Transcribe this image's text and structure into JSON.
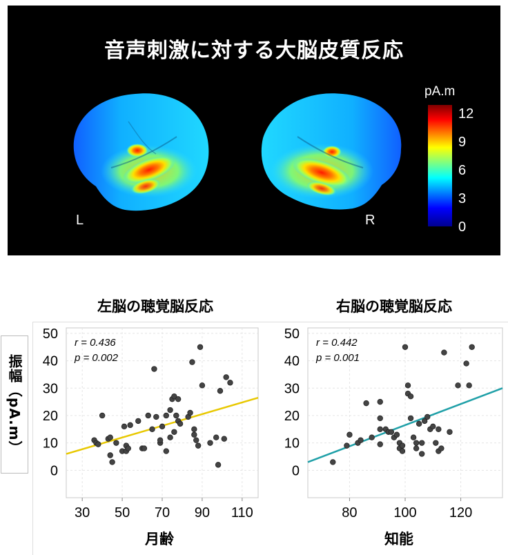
{
  "figure": {
    "title": "音声刺激に対する大脳皮質反応",
    "hemisphere_labels": {
      "left": "L",
      "right": "R"
    },
    "colorbar": {
      "unit": "pA.m",
      "ticks": [
        "12",
        "9",
        "6",
        "3",
        "0"
      ],
      "range": [
        0,
        12
      ],
      "colors": [
        "#00008f",
        "#0000ff",
        "#00ffff",
        "#ffff00",
        "#ff0000",
        "#800000"
      ]
    }
  },
  "y_axis_title": "振幅（pA.m）",
  "chart_data": [
    {
      "type": "scatter",
      "title": "左脳の聴覚脳反応",
      "xlabel": "月齢",
      "ylabel": "振幅（pA.m）",
      "xlim": [
        22,
        118
      ],
      "ylim": [
        -10,
        52
      ],
      "xticks": [
        30,
        50,
        70,
        90,
        110
      ],
      "yticks": [
        50,
        40,
        30,
        20,
        10,
        0
      ],
      "grid": true,
      "fit_color": "#e8c800",
      "fit_line": {
        "x": [
          22,
          118
        ],
        "y": [
          6,
          26.5
        ]
      },
      "annotations": [
        "r = 0.436",
        "p = 0.002"
      ],
      "points": [
        [
          36,
          11
        ],
        [
          37,
          10
        ],
        [
          38,
          9.5
        ],
        [
          40,
          20
        ],
        [
          43,
          11.5
        ],
        [
          44,
          12
        ],
        [
          44,
          5.5
        ],
        [
          45,
          3
        ],
        [
          47,
          10
        ],
        [
          50,
          7
        ],
        [
          51,
          16
        ],
        [
          52,
          9
        ],
        [
          52,
          7
        ],
        [
          53,
          8
        ],
        [
          54,
          16.5
        ],
        [
          58,
          18
        ],
        [
          60,
          8
        ],
        [
          61,
          8
        ],
        [
          63,
          20
        ],
        [
          65,
          15
        ],
        [
          66,
          37
        ],
        [
          67,
          19.5
        ],
        [
          69,
          10
        ],
        [
          69,
          11
        ],
        [
          70,
          16
        ],
        [
          72,
          20
        ],
        [
          72,
          7
        ],
        [
          74,
          22
        ],
        [
          74,
          12
        ],
        [
          75,
          26
        ],
        [
          76,
          27
        ],
        [
          76,
          14
        ],
        [
          77,
          20
        ],
        [
          78,
          18
        ],
        [
          78,
          26
        ],
        [
          79,
          17
        ],
        [
          83,
          19.5
        ],
        [
          84,
          21
        ],
        [
          85,
          39.5
        ],
        [
          86,
          15
        ],
        [
          86,
          13
        ],
        [
          87,
          11
        ],
        [
          88,
          9
        ],
        [
          89,
          45
        ],
        [
          90,
          31
        ],
        [
          94,
          10
        ],
        [
          97,
          12
        ],
        [
          98,
          2
        ],
        [
          99,
          29
        ],
        [
          101,
          11.5
        ],
        [
          102,
          34
        ],
        [
          104,
          32
        ]
      ]
    },
    {
      "type": "scatter",
      "title": "右脳の聴覚脳反応",
      "xlabel": "知能",
      "ylabel": "振幅（pA.m）",
      "xlim": [
        65,
        135
      ],
      "ylim": [
        -10,
        52
      ],
      "xticks": [
        80,
        100,
        120
      ],
      "yticks": [
        50,
        40,
        30,
        20,
        10,
        0
      ],
      "grid": true,
      "fit_color": "#20a0a8",
      "fit_line": {
        "x": [
          65,
          135
        ],
        "y": [
          3,
          30
        ]
      },
      "annotations": [
        "r = 0.442",
        "p = 0.001"
      ],
      "points": [
        [
          74,
          3
        ],
        [
          79,
          9
        ],
        [
          80,
          13
        ],
        [
          83,
          10
        ],
        [
          84,
          11
        ],
        [
          86,
          24.5
        ],
        [
          88,
          12
        ],
        [
          91,
          25
        ],
        [
          91,
          19
        ],
        [
          91,
          15
        ],
        [
          91,
          9.5
        ],
        [
          93,
          15
        ],
        [
          94,
          14
        ],
        [
          95,
          14
        ],
        [
          96,
          12
        ],
        [
          97,
          13
        ],
        [
          98,
          10
        ],
        [
          98,
          8
        ],
        [
          99,
          7
        ],
        [
          99,
          9
        ],
        [
          100,
          45
        ],
        [
          101,
          31
        ],
        [
          101,
          28
        ],
        [
          102,
          27
        ],
        [
          102,
          19
        ],
        [
          103,
          12
        ],
        [
          104,
          8
        ],
        [
          104,
          10
        ],
        [
          105,
          17
        ],
        [
          106,
          6
        ],
        [
          106,
          10
        ],
        [
          107,
          18
        ],
        [
          108,
          19.5
        ],
        [
          109,
          15
        ],
        [
          110,
          16
        ],
        [
          111,
          10
        ],
        [
          112,
          15
        ],
        [
          112,
          7
        ],
        [
          113,
          8
        ],
        [
          114,
          43
        ],
        [
          116,
          14
        ],
        [
          119,
          31
        ],
        [
          122,
          39
        ],
        [
          123,
          31
        ],
        [
          124,
          45
        ]
      ]
    }
  ]
}
